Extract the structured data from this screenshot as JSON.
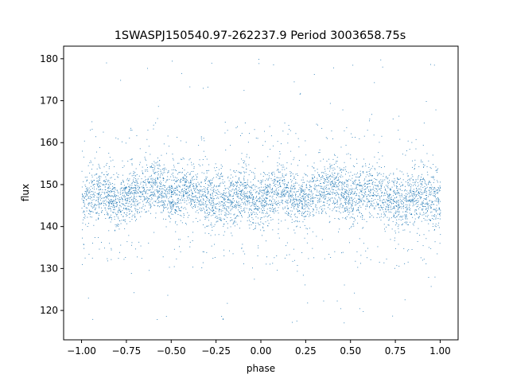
{
  "chart_data": {
    "type": "scatter",
    "title": "1SWASPJ150540.97-262237.9 Period 3003658.75s",
    "xlabel": "phase",
    "ylabel": "flux",
    "xlim": [
      -1.1,
      1.1
    ],
    "ylim": [
      113,
      183
    ],
    "xticks": [
      -1.0,
      -0.75,
      -0.5,
      -0.25,
      0.0,
      0.25,
      0.5,
      0.75,
      1.0
    ],
    "xtick_labels": [
      "−1.00",
      "−0.75",
      "−0.50",
      "−0.25",
      "0.00",
      "0.25",
      "0.50",
      "0.75",
      "1.00"
    ],
    "yticks": [
      120,
      130,
      140,
      150,
      160,
      170,
      180
    ],
    "ytick_labels": [
      "120",
      "130",
      "140",
      "150",
      "160",
      "170",
      "180"
    ],
    "grid": false,
    "legend": "none",
    "marker_color": "#1f77b4",
    "series": [
      {
        "description_values": "dense light-curve points, folded twice over phase -1..1",
        "phase_range": [
          -1.0,
          1.0
        ],
        "flux_core_range": [
          138,
          158
        ],
        "flux_center": 148,
        "flux_full_range": [
          116,
          180
        ],
        "x_samples": [
          -1.0,
          -0.9,
          -0.8,
          -0.7,
          -0.6,
          -0.5,
          -0.4,
          -0.3,
          -0.2,
          -0.1,
          0.0,
          0.1,
          0.2,
          0.3,
          0.4,
          0.5,
          0.6,
          0.7,
          0.8,
          0.9,
          1.0
        ],
        "y_samples_center": [
          146,
          149,
          146,
          148,
          150,
          147,
          149,
          147,
          146,
          148,
          146,
          149,
          146,
          148,
          150,
          147,
          149,
          147,
          146,
          148,
          146
        ]
      }
    ]
  }
}
